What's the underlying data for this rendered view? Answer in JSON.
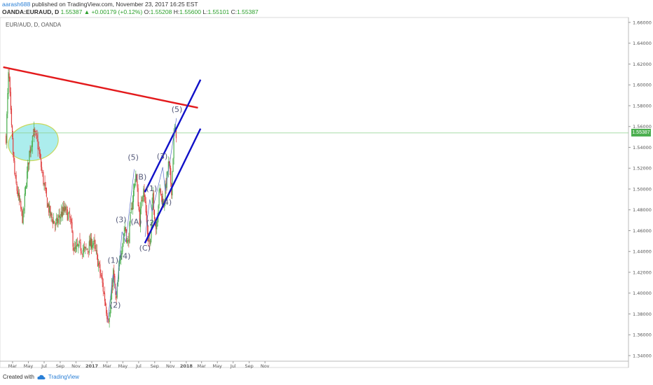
{
  "header": {
    "line1_user": "aarash688",
    "line1_rest": " published on TradingView.com, November 23, 2017 16:25 EST",
    "symbol": "OANDA:EURAUD, D",
    "price": "1.55387",
    "change": "▲ +0.00179 (+0.12%)",
    "open_label": "O:",
    "open": "1.55208",
    "high_label": "H:",
    "high": "1.55600",
    "low_label": "L:",
    "low": "1.55101",
    "close_label": "C:",
    "close": "1.55387"
  },
  "symbol_title": "EUR/AUD, D, OANDA",
  "price_badge": "1.55387",
  "footer": {
    "created": "Created with",
    "brand": "TradingView"
  },
  "colors": {
    "up": "#4caf50",
    "down": "#e04040",
    "resistance_line": "#e31a1c",
    "channel": "#1010c8",
    "ellipse_fill": "#7fe3e3",
    "ellipse_stroke": "#c8d85a",
    "price_line": "#8bd08b"
  },
  "chart_data": {
    "type": "candlestick",
    "instrument": "EUR/AUD",
    "timeframe": "D",
    "y_ticks": [
      "1.34000",
      "1.36000",
      "1.38000",
      "1.40000",
      "1.42000",
      "1.44000",
      "1.46000",
      "1.48000",
      "1.50000",
      "1.52000",
      "1.54000",
      "1.56000",
      "1.58000",
      "1.60000",
      "1.62000",
      "1.64000",
      "1.66000"
    ],
    "x_ticks": [
      "Mar",
      "May",
      "Jul",
      "Sep",
      "Nov",
      "2017",
      "Mar",
      "May",
      "Jul",
      "Sep",
      "Nov",
      "2018",
      "Mar",
      "May",
      "Jul",
      "Sep",
      "Nov"
    ],
    "close_path": [
      [
        "2016-02-05",
        1.55
      ],
      [
        "2016-02-15",
        1.615
      ],
      [
        "2016-02-25",
        1.56
      ],
      [
        "2016-03-10",
        1.51
      ],
      [
        "2016-03-25",
        1.49
      ],
      [
        "2016-04-10",
        1.47
      ],
      [
        "2016-04-20",
        1.5
      ],
      [
        "2016-05-05",
        1.535
      ],
      [
        "2016-05-20",
        1.555
      ],
      [
        "2016-06-05",
        1.545
      ],
      [
        "2016-06-20",
        1.52
      ],
      [
        "2016-07-10",
        1.49
      ],
      [
        "2016-07-25",
        1.475
      ],
      [
        "2016-08-15",
        1.465
      ],
      [
        "2016-09-01",
        1.475
      ],
      [
        "2016-09-20",
        1.48
      ],
      [
        "2016-10-10",
        1.47
      ],
      [
        "2016-10-25",
        1.44
      ],
      [
        "2016-11-15",
        1.445
      ],
      [
        "2016-12-05",
        1.44
      ],
      [
        "2017-01-05",
        1.45
      ],
      [
        "2017-01-25",
        1.43
      ],
      [
        "2017-02-10",
        1.41
      ],
      [
        "2017-03-01",
        1.38
      ],
      [
        "2017-03-10",
        1.375
      ],
      [
        "2017-03-25",
        1.42
      ],
      [
        "2017-04-05",
        1.39
      ],
      [
        "2017-04-20",
        1.435
      ],
      [
        "2017-05-10",
        1.465
      ],
      [
        "2017-05-20",
        1.445
      ],
      [
        "2017-06-05",
        1.485
      ],
      [
        "2017-06-20",
        1.515
      ],
      [
        "2017-07-05",
        1.47
      ],
      [
        "2017-07-20",
        1.505
      ],
      [
        "2017-08-05",
        1.455
      ],
      [
        "2017-08-15",
        1.445
      ],
      [
        "2017-08-25",
        1.495
      ],
      [
        "2017-09-05",
        1.46
      ],
      [
        "2017-09-20",
        1.5
      ],
      [
        "2017-10-05",
        1.485
      ],
      [
        "2017-10-25",
        1.525
      ],
      [
        "2017-11-05",
        1.5
      ],
      [
        "2017-11-15",
        1.555
      ],
      [
        "2017-11-23",
        1.55387
      ]
    ],
    "wave_labels": [
      "(1)",
      "(2)",
      "(3)",
      "(4)",
      "(5)",
      "(A)",
      "(B)",
      "(C)",
      "(1)",
      "(2)",
      "(3)",
      "(4)",
      "(5)"
    ],
    "annotations": [
      {
        "type": "trendline",
        "color": "red",
        "from": [
          "2016-01-25",
          1.617
        ],
        "to": [
          "2018-02-15",
          1.578
        ]
      },
      {
        "type": "channel_upper",
        "color": "blue",
        "from": [
          "2017-07-25",
          1.497
        ],
        "to": [
          "2018-02-25",
          1.605
        ]
      },
      {
        "type": "channel_lower",
        "color": "blue",
        "from": [
          "2017-07-25",
          1.448
        ],
        "to": [
          "2018-02-25",
          1.558
        ]
      },
      {
        "type": "ellipse",
        "center": [
          "2016-05-20",
          1.545
        ]
      }
    ]
  }
}
